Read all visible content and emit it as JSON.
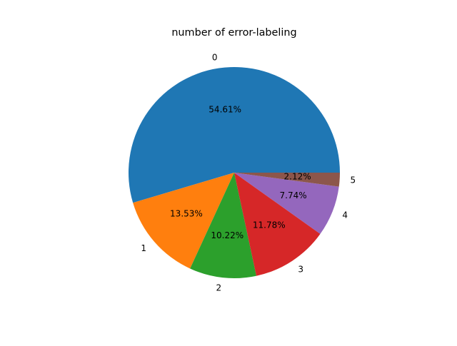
{
  "chart_data": {
    "type": "pie",
    "title": "number of error-labeling",
    "categories": [
      "0",
      "1",
      "2",
      "3",
      "4",
      "5"
    ],
    "values": [
      54.61,
      13.53,
      10.22,
      11.78,
      7.74,
      2.12
    ],
    "percent_labels": [
      "54.61%",
      "13.53%",
      "10.22%",
      "11.78%",
      "7.74%",
      "2.12%"
    ],
    "colors": [
      "#1f77b4",
      "#ff7f0e",
      "#2ca02c",
      "#d62728",
      "#9467bd",
      "#8c564b"
    ],
    "start_angle_deg": 0,
    "direction": "counterclockwise",
    "legend": "none"
  }
}
